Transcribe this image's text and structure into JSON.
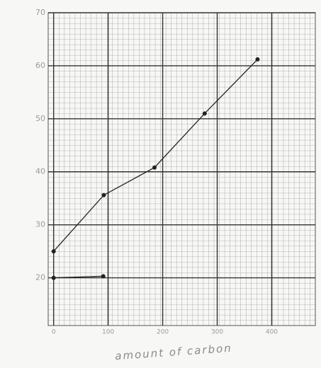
{
  "chart_data": {
    "type": "line",
    "x_label": "amount of carbon",
    "xlim": [
      -10,
      480
    ],
    "xticks": [
      0,
      100,
      200,
      300,
      400
    ],
    "ylim": [
      11,
      70
    ],
    "yticks": [
      20,
      30,
      40,
      50,
      60,
      70
    ],
    "grid": true,
    "series": [
      {
        "color": "#222222",
        "x": [
          0,
          92,
          185,
          277,
          374
        ],
        "values": [
          25,
          35.6,
          40.8,
          51,
          61.2
        ]
      },
      {
        "color": "#222222",
        "x": [
          0,
          91
        ],
        "values": [
          20,
          20.3
        ]
      }
    ]
  }
}
